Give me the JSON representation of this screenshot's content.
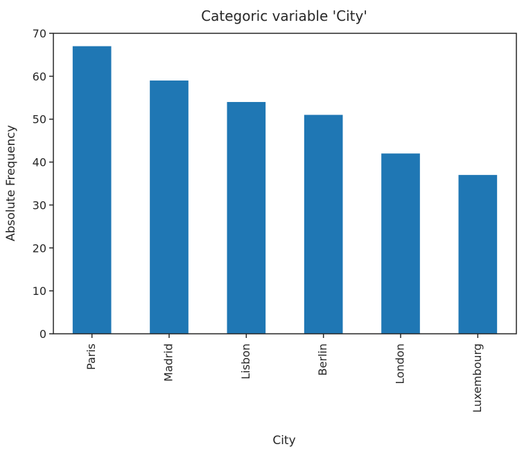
{
  "chart_data": {
    "type": "bar",
    "title": "Categoric variable 'City'",
    "xlabel": "City",
    "ylabel": "Absolute Frequency",
    "categories": [
      "Paris",
      "Madrid",
      "Lisbon",
      "Berlin",
      "London",
      "Luxembourg"
    ],
    "values": [
      67,
      59,
      54,
      51,
      42,
      37
    ],
    "ylim": [
      0,
      70
    ],
    "yticks": [
      0,
      10,
      20,
      30,
      40,
      50,
      60,
      70
    ],
    "grid": false,
    "legend": "none",
    "colors": {
      "bar": "#1f77b4",
      "axis": "#262626",
      "text": "#262626"
    }
  }
}
